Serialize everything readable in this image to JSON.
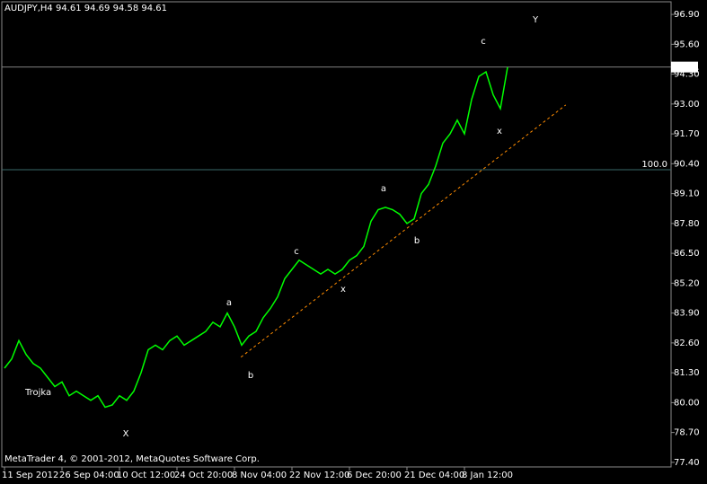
{
  "chart_data": {
    "type": "line",
    "title": "AUDJPY,H4  94.61 94.69 94.58 94.61",
    "footer": "MetaTrader 4, © 2001-2012, MetaQuotes Software Corp.",
    "categories": [
      "11 Sep 2012",
      null,
      null,
      null,
      null,
      null,
      null,
      null,
      "26 Sep 04:00",
      null,
      null,
      null,
      null,
      null,
      null,
      null,
      "10 Oct 12:00",
      null,
      null,
      null,
      null,
      null,
      null,
      null,
      "24 Oct 20:00",
      null,
      null,
      null,
      null,
      null,
      null,
      null,
      "8 Nov 04:00",
      null,
      null,
      null,
      null,
      null,
      null,
      null,
      "22 Nov 12:00",
      null,
      null,
      null,
      null,
      null,
      null,
      null,
      "6 Dec 20:00",
      null,
      null,
      null,
      null,
      null,
      null,
      null,
      "21 Dec 04:00",
      null,
      null,
      null,
      null,
      null,
      null,
      null,
      "8 Jan 12:00",
      null,
      null,
      null,
      null,
      null,
      null
    ],
    "series": [
      {
        "name": "AUDJPY",
        "color": "#00ff00",
        "values": [
          81.5,
          81.9,
          82.7,
          82.1,
          81.7,
          81.5,
          81.1,
          80.7,
          80.9,
          80.3,
          80.5,
          80.3,
          80.1,
          80.3,
          79.8,
          79.9,
          80.3,
          80.1,
          80.5,
          81.3,
          82.3,
          82.5,
          82.3,
          82.7,
          82.9,
          82.5,
          82.7,
          82.9,
          83.1,
          83.5,
          83.3,
          83.9,
          83.3,
          82.5,
          82.9,
          83.1,
          83.7,
          84.1,
          84.6,
          85.4,
          85.8,
          86.2,
          86.0,
          85.8,
          85.6,
          85.8,
          85.6,
          85.8,
          86.2,
          86.4,
          86.8,
          87.9,
          88.4,
          88.5,
          88.4,
          88.2,
          87.8,
          88.0,
          89.1,
          89.5,
          90.3,
          91.3,
          91.7,
          92.3,
          91.7,
          93.2,
          94.2,
          94.4,
          93.4,
          92.8,
          94.6
        ]
      }
    ],
    "ylim": [
      77.2,
      97.45
    ],
    "yticks": [
      {
        "value": 96.9,
        "label": "96.90"
      },
      {
        "value": 95.6,
        "label": "95.60"
      },
      {
        "value": 94.3,
        "label": "94.30"
      },
      {
        "value": 93.0,
        "label": "93.00"
      },
      {
        "value": 91.7,
        "label": "91.70"
      },
      {
        "value": 90.4,
        "label": "90.40"
      },
      {
        "value": 89.1,
        "label": "89.10"
      },
      {
        "value": 87.8,
        "label": "87.80"
      },
      {
        "value": 86.5,
        "label": "86.50"
      },
      {
        "value": 85.2,
        "label": "85.20"
      },
      {
        "value": 83.9,
        "label": "83.90"
      },
      {
        "value": 82.6,
        "label": "82.60"
      },
      {
        "value": 81.3,
        "label": "81.30"
      },
      {
        "value": 80.0,
        "label": "80.00"
      },
      {
        "value": 78.7,
        "label": "78.70"
      },
      {
        "value": 77.4,
        "label": "77.40"
      }
    ],
    "last_price": {
      "value": 94.61,
      "label": "94.61"
    },
    "level": {
      "value": 90.14,
      "label": "100.0"
    },
    "trendline": {
      "x": [
        32.9,
        78.1
      ],
      "y": [
        81.98,
        92.96
      ],
      "color": "#ff8c00"
    },
    "annotations": [
      {
        "text": "Y"
      },
      {
        "text": "c"
      },
      {
        "text": "x"
      },
      {
        "text": "a"
      },
      {
        "text": "b"
      },
      {
        "text": "c"
      },
      {
        "text": "x"
      },
      {
        "text": "a"
      },
      {
        "text": "b"
      },
      {
        "text": "X"
      },
      {
        "text": "Trojka"
      }
    ]
  }
}
